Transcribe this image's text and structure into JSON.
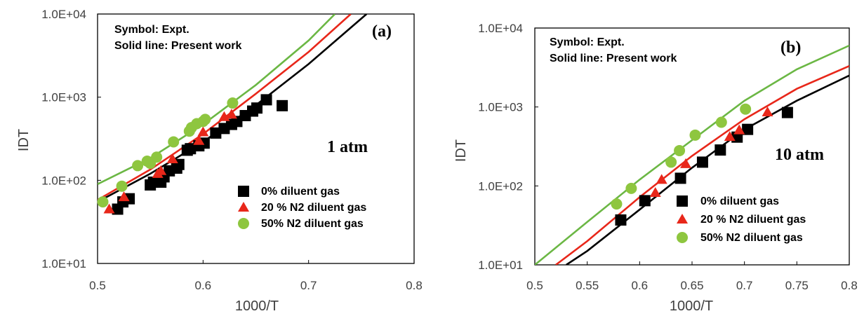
{
  "chart_data": [
    {
      "type": "scatter",
      "panel_label": "(a)",
      "pressure_label": "1 atm",
      "xlabel": "1000/T",
      "ylabel": "IDT",
      "xlim": [
        0.5,
        0.8
      ],
      "ylim": [
        10,
        10000
      ],
      "yscale": "log",
      "x_ticks": [
        0.5,
        0.6,
        0.7,
        0.8
      ],
      "x_tick_labels": [
        "0.5",
        "0.6",
        "0.7",
        "0.8"
      ],
      "y_ticks": [
        10,
        100,
        1000,
        10000
      ],
      "y_tick_labels": [
        "1.0E+01",
        "1.0E+02",
        "1.0E+03",
        "1.0E+04"
      ],
      "annotation": [
        "Symbol: Expt.",
        "Solid line: Present work"
      ],
      "legend_position": "bottom-right",
      "series": [
        {
          "name": "0% diluent gas",
          "marker": "square",
          "color": "#000000",
          "points": [
            [
              0.519,
              45
            ],
            [
              0.524,
              55
            ],
            [
              0.53,
              60
            ],
            [
              0.55,
              88
            ],
            [
              0.553,
              95
            ],
            [
              0.56,
              95
            ],
            [
              0.563,
              110
            ],
            [
              0.568,
              130
            ],
            [
              0.575,
              140
            ],
            [
              0.577,
              155
            ],
            [
              0.585,
              230
            ],
            [
              0.588,
              240
            ],
            [
              0.596,
              260
            ],
            [
              0.601,
              280
            ],
            [
              0.612,
              370
            ],
            [
              0.62,
              420
            ],
            [
              0.627,
              470
            ],
            [
              0.632,
              510
            ],
            [
              0.64,
              600
            ],
            [
              0.647,
              680
            ],
            [
              0.651,
              740
            ],
            [
              0.66,
              930
            ],
            [
              0.675,
              790
            ]
          ]
        },
        {
          "name": "20 % N2 diluent gas",
          "marker": "triangle",
          "color": "#e8271a",
          "points": [
            [
              0.511,
              45
            ],
            [
              0.525,
              63
            ],
            [
              0.557,
              120
            ],
            [
              0.56,
              130
            ],
            [
              0.571,
              180
            ],
            [
              0.596,
              300
            ],
            [
              0.6,
              380
            ],
            [
              0.62,
              580
            ],
            [
              0.627,
              620
            ]
          ]
        },
        {
          "name": "50% N2 diluent gas",
          "marker": "circle",
          "color": "#8ec63f",
          "points": [
            [
              0.505,
              55
            ],
            [
              0.523,
              85
            ],
            [
              0.538,
              150
            ],
            [
              0.547,
              170
            ],
            [
              0.55,
              160
            ],
            [
              0.556,
              190
            ],
            [
              0.572,
              290
            ],
            [
              0.587,
              390
            ],
            [
              0.589,
              430
            ],
            [
              0.594,
              480
            ],
            [
              0.6,
              510
            ],
            [
              0.602,
              540
            ],
            [
              0.628,
              850
            ]
          ]
        }
      ],
      "model_lines": [
        {
          "color": "#6bb744",
          "points": [
            [
              0.5,
              90
            ],
            [
              0.55,
              185
            ],
            [
              0.6,
              470
            ],
            [
              0.65,
              1400
            ],
            [
              0.7,
              4800
            ],
            [
              0.725,
              10000
            ]
          ]
        },
        {
          "color": "#e8271a",
          "points": [
            [
              0.5,
              58
            ],
            [
              0.55,
              135
            ],
            [
              0.6,
              360
            ],
            [
              0.65,
              1100
            ],
            [
              0.7,
              3500
            ],
            [
              0.74,
              10000
            ]
          ]
        },
        {
          "color": "#000000",
          "points": [
            [
              0.5,
              55
            ],
            [
              0.55,
              120
            ],
            [
              0.6,
              290
            ],
            [
              0.65,
              800
            ],
            [
              0.7,
              2500
            ],
            [
              0.755,
              10000
            ]
          ]
        }
      ]
    },
    {
      "type": "scatter",
      "panel_label": "(b)",
      "pressure_label": "10 atm",
      "xlabel": "1000/T",
      "ylabel": "IDT",
      "xlim": [
        0.5,
        0.8
      ],
      "ylim": [
        10,
        10000
      ],
      "yscale": "log",
      "x_ticks": [
        0.5,
        0.55,
        0.6,
        0.65,
        0.7,
        0.75,
        0.8
      ],
      "x_tick_labels": [
        "0.5",
        "0.55",
        "0.6",
        "0.65",
        "0.7",
        "0.75",
        "0.8"
      ],
      "y_ticks": [
        10,
        100,
        1000,
        10000
      ],
      "y_tick_labels": [
        "1.0E+01",
        "1.0E+02",
        "1.0E+03",
        "1.0E+04"
      ],
      "annotation": [
        "Symbol: Expt.",
        "Solid line: Present work"
      ],
      "legend_position": "bottom-right",
      "series": [
        {
          "name": "0% diluent gas",
          "marker": "square",
          "color": "#000000",
          "points": [
            [
              0.582,
              37
            ],
            [
              0.605,
              65
            ],
            [
              0.639,
              125
            ],
            [
              0.66,
              200
            ],
            [
              0.677,
              285
            ],
            [
              0.693,
              415
            ],
            [
              0.703,
              520
            ],
            [
              0.741,
              850
            ]
          ]
        },
        {
          "name": "20 % N2 diluent gas",
          "marker": "triangle",
          "color": "#e8271a",
          "points": [
            [
              0.615,
              82
            ],
            [
              0.621,
              120
            ],
            [
              0.644,
              190
            ],
            [
              0.686,
              420
            ],
            [
              0.695,
              510
            ],
            [
              0.722,
              860
            ]
          ]
        },
        {
          "name": "50% N2 diluent gas",
          "marker": "circle",
          "color": "#8ec63f",
          "points": [
            [
              0.578,
              59
            ],
            [
              0.592,
              93
            ],
            [
              0.63,
              200
            ],
            [
              0.638,
              280
            ],
            [
              0.653,
              440
            ],
            [
              0.678,
              640
            ],
            [
              0.701,
              940
            ]
          ]
        }
      ],
      "model_lines": [
        {
          "color": "#6bb744",
          "points": [
            [
              0.5,
              10
            ],
            [
              0.55,
              35
            ],
            [
              0.6,
              120
            ],
            [
              0.65,
              380
            ],
            [
              0.7,
              1200
            ],
            [
              0.75,
              3000
            ],
            [
              0.8,
              6000
            ]
          ]
        },
        {
          "color": "#e8271a",
          "points": [
            [
              0.52,
              10
            ],
            [
              0.55,
              20
            ],
            [
              0.6,
              72
            ],
            [
              0.65,
              240
            ],
            [
              0.7,
              700
            ],
            [
              0.75,
              1700
            ],
            [
              0.8,
              3300
            ]
          ]
        },
        {
          "color": "#000000",
          "points": [
            [
              0.53,
              10
            ],
            [
              0.55,
              15
            ],
            [
              0.6,
              50
            ],
            [
              0.65,
              170
            ],
            [
              0.7,
              520
            ],
            [
              0.75,
              1200
            ],
            [
              0.8,
              2500
            ]
          ]
        }
      ]
    }
  ]
}
